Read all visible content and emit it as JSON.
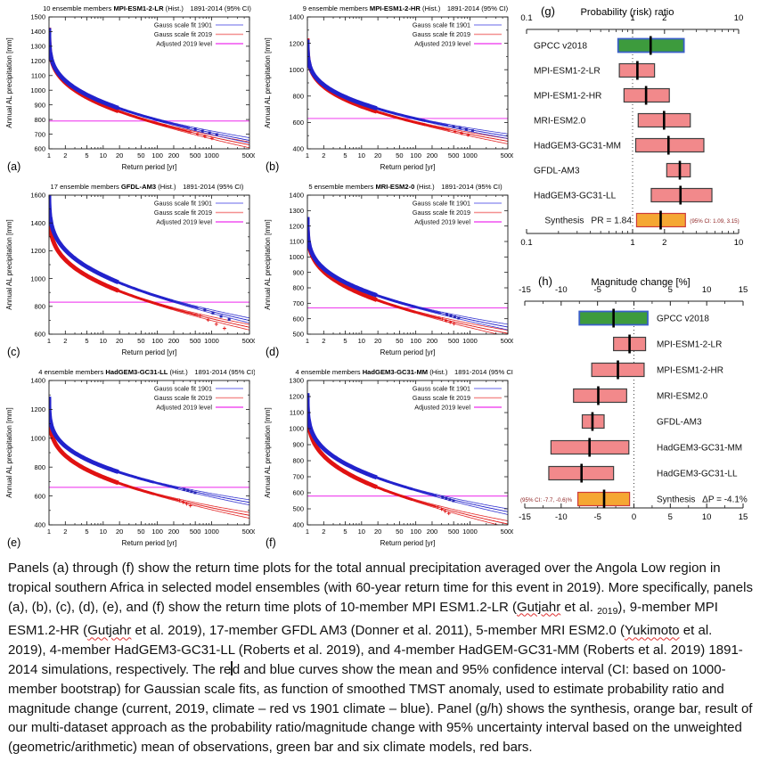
{
  "style": {
    "curve_blue": "#2222cc",
    "curve_red": "#e01212",
    "ci_blue": "#9a9af0",
    "ci_red": "#f49090",
    "level_magenta": "#f050f0",
    "marker_blue": "#2626b4",
    "bar_pink": "#f2898b",
    "bar_green": "#3d9b3d",
    "bar_orange": "#f5a733",
    "pink_border": "#3f3f3f",
    "green_border": "#3a5fc8",
    "orange_border": "#cc3a3a",
    "note_color": "#8b1e1e",
    "axis_color": "#1a1a1a"
  },
  "figure": {
    "shared": {
      "ylabel": "Annual AL precipitation [mm]",
      "xlabel": "Return period [yr]",
      "xticks": [
        1,
        2,
        5,
        10,
        20,
        50,
        100,
        200,
        500,
        1000,
        5000
      ],
      "legend": [
        {
          "label": "Gauss scale fit 1901",
          "color_key": "ci_blue"
        },
        {
          "label": "Gauss scale fit 2019",
          "color_key": "ci_red"
        },
        {
          "label": "Adjusted 2019 level",
          "color_key": "level_magenta"
        }
      ]
    }
  },
  "chart_data": [
    {
      "id": "a",
      "type": "line",
      "panel_letter": "(a)",
      "title_prefix": "10 ensemble members",
      "title_model": "MPI-ESM1-2-LR",
      "title_hist": "(Hist.)",
      "title_range": "1891-2014 (95% CI)",
      "xlabel": "Return period [yr]",
      "ylabel": "Annual AL precipitation [mm]",
      "xlim": [
        1,
        5000
      ],
      "ylim": [
        600,
        1500
      ],
      "ytick_step": 100,
      "adjusted_2019_level": 790,
      "gauss_fit_1901": {
        "value_at_T2": 1065,
        "sigma": 115
      },
      "gauss_fit_2019": {
        "value_at_T2": 1052,
        "sigma": 120
      },
      "data_max_T": 1240,
      "band_T": 150,
      "band2_T": 400,
      "drop_blue": 1.5,
      "drop_red": 3
    },
    {
      "id": "b",
      "type": "line",
      "panel_letter": "(b)",
      "title_prefix": "9 ensemble members",
      "title_model": "MPI-ESM1-2-HR",
      "title_hist": "(Hist.)",
      "title_range": "1891-2014 (95% CI)",
      "xlabel": "Return period [yr]",
      "ylabel": "Annual AL precipitation [mm]",
      "xlim": [
        1,
        5000
      ],
      "ylim": [
        400,
        1400
      ],
      "ytick_step": 200,
      "adjusted_2019_level": 630,
      "gauss_fit_1901": {
        "value_at_T2": 885,
        "sigma": 110
      },
      "gauss_fit_2019": {
        "value_at_T2": 872,
        "sigma": 117
      },
      "data_max_T": 1116,
      "band_T": 150,
      "band2_T": 400,
      "drop_blue": 1.5,
      "drop_red": 3
    },
    {
      "id": "c",
      "type": "line",
      "panel_letter": "(c)",
      "title_prefix": "17 ensemble members",
      "title_model": "GFDL-AM3",
      "title_hist": "(Hist.)",
      "title_range": "1891-2014 (95% CI)",
      "xlabel": "Return period [yr]",
      "ylabel": "Annual AL precipitation [mm]",
      "xlim": [
        1,
        5000
      ],
      "ylim": [
        600,
        1600
      ],
      "ytick_step": 200,
      "adjusted_2019_level": 830,
      "gauss_fit_1901": {
        "value_at_T2": 1205,
        "sigma": 143
      },
      "gauss_fit_2019": {
        "value_at_T2": 1135,
        "sigma": 137
      },
      "data_max_T": 2108,
      "band_T": 200,
      "band2_T": 600,
      "drop_blue": 9,
      "drop_red": 16
    },
    {
      "id": "d",
      "type": "line",
      "panel_letter": "(d)",
      "title_prefix": "5 ensemble members",
      "title_model": "MRI-ESM2-0",
      "title_hist": "(Hist.)",
      "title_range": "1891-2014 (95% CI)",
      "xlabel": "Return period [yr]",
      "ylabel": "Annual AL precipitation [mm]",
      "xlim": [
        1,
        5000
      ],
      "ylim": [
        500,
        1400
      ],
      "ytick_step": 100,
      "adjusted_2019_level": 670,
      "gauss_fit_1901": {
        "value_at_T2": 925,
        "sigma": 107
      },
      "gauss_fit_2019": {
        "value_at_T2": 905,
        "sigma": 113
      },
      "data_max_T": 620,
      "band_T": 100,
      "band2_T": 300,
      "drop_blue": 2,
      "drop_red": 4
    },
    {
      "id": "e",
      "type": "line",
      "panel_letter": "(e)",
      "title_prefix": "4 ensemble members",
      "title_model": "HadGEM3-GC31-LL",
      "title_hist": "(Hist.)",
      "title_range": "1891-2014 (95% CI)",
      "xlabel": "Return period [yr]",
      "ylabel": "Annual AL precipitation [mm]",
      "xlim": [
        1,
        5000
      ],
      "ylim": [
        400,
        1400
      ],
      "ytick_step": 200,
      "adjusted_2019_level": 660,
      "gauss_fit_1901": {
        "value_at_T2": 945,
        "sigma": 110
      },
      "gauss_fit_2019": {
        "value_at_T2": 880,
        "sigma": 117
      },
      "data_max_T": 496,
      "band_T": 90,
      "band2_T": 250,
      "drop_blue": 2,
      "drop_red": 6
    },
    {
      "id": "f",
      "type": "line",
      "panel_letter": "(f)",
      "title_prefix": "4 ensemble members",
      "title_model": "HadGEM3-GC31-MM",
      "title_hist": "(Hist.)",
      "title_range": "1891-2014 (95% CI)",
      "xlabel": "Return period [yr]",
      "ylabel": "Annual AL precipitation [mm]",
      "xlim": [
        1,
        5000
      ],
      "ylim": [
        400,
        1300
      ],
      "ytick_step": 100,
      "adjusted_2019_level": 580,
      "gauss_fit_1901": {
        "value_at_T2": 875,
        "sigma": 111
      },
      "gauss_fit_2019": {
        "value_at_T2": 830,
        "sigma": 120
      },
      "data_max_T": 496,
      "band_T": 90,
      "band2_T": 250,
      "drop_blue": 2,
      "drop_red": 7
    },
    {
      "id": "g",
      "type": "forest",
      "panel_letter": "(g)",
      "title": "Probability (risk) ratio",
      "scale": "log",
      "xlim": [
        0.1,
        10
      ],
      "tick_values": [
        0.1,
        1,
        2,
        10
      ],
      "tick_labels": [
        "0.1",
        "1",
        "2",
        "10"
      ],
      "reference_line": 1,
      "label_side": "left",
      "rows": [
        {
          "label": "GPCC v2018",
          "kind": "obs",
          "lo": 0.73,
          "hi": 3.05,
          "best": 1.48
        },
        {
          "label": "MPI-ESM1-2-LR",
          "kind": "model",
          "lo": 0.75,
          "hi": 1.61,
          "best": 1.11
        },
        {
          "label": "MPI-ESM1-2-HR",
          "kind": "model",
          "lo": 0.83,
          "hi": 2.22,
          "best": 1.34
        },
        {
          "label": "MRI-ESM2.0",
          "kind": "model",
          "lo": 1.13,
          "hi": 3.5,
          "best": 1.98
        },
        {
          "label": "HadGEM3-GC31-MM",
          "kind": "model",
          "lo": 1.07,
          "hi": 4.7,
          "best": 2.18
        },
        {
          "label": "GFDL-AM3",
          "kind": "model",
          "lo": 2.1,
          "hi": 3.5,
          "best": 2.79
        },
        {
          "label": "HadGEM3-GC31-LL",
          "kind": "model",
          "lo": 1.5,
          "hi": 5.6,
          "best": 2.83
        },
        {
          "label": "Synthesis",
          "extra": "PR = 1.84",
          "kind": "synthesis",
          "lo": 1.09,
          "hi": 3.15,
          "best": 1.84,
          "note": "(95% CI: 1.09, 3.15)",
          "note_side": "right"
        }
      ]
    },
    {
      "id": "h",
      "type": "forest",
      "panel_letter": "(h)",
      "title": "Magnitude change [%]",
      "scale": "linear",
      "xlim": [
        -15,
        15
      ],
      "tick_values": [
        -15,
        -10,
        -5,
        0,
        5,
        10,
        15
      ],
      "tick_labels": [
        "-15",
        "-10",
        "-5",
        "0",
        "5",
        "10",
        "15"
      ],
      "reference_line": 0,
      "label_side": "right",
      "rows": [
        {
          "label": "GPCC v2018",
          "kind": "obs",
          "lo": -7.5,
          "hi": 1.9,
          "best": -2.8
        },
        {
          "label": "MPI-ESM1-2-LR",
          "kind": "model",
          "lo": -2.8,
          "hi": 1.6,
          "best": -0.6
        },
        {
          "label": "MPI-ESM1-2-HR",
          "kind": "model",
          "lo": -5.8,
          "hi": 1.4,
          "best": -2.2
        },
        {
          "label": "MRI-ESM2.0",
          "kind": "model",
          "lo": -8.3,
          "hi": -1.0,
          "best": -4.9
        },
        {
          "label": "GFDL-AM3",
          "kind": "model",
          "lo": -7.1,
          "hi": -4.1,
          "best": -5.7
        },
        {
          "label": "HadGEM3-GC31-MM",
          "kind": "model",
          "lo": -11.4,
          "hi": -0.7,
          "best": -6.1
        },
        {
          "label": "HadGEM3-GC31-LL",
          "kind": "model",
          "lo": -11.7,
          "hi": -2.8,
          "best": -7.2
        },
        {
          "label": "Synthesis",
          "extra": "ΔP = -4.1%",
          "kind": "synthesis",
          "lo": -7.7,
          "hi": -0.6,
          "best": -4.1,
          "note": "(95% CI: -7.7, -0.6)%",
          "note_side": "left"
        }
      ]
    }
  ],
  "caption": {
    "parts": [
      {
        "text": "Panels (a) through (f) show the return time plots for the total annual precipitation averaged over the Angola Low region in tropical southern Africa in selected model ensembles (with 60-year return time for this event in 2019). More specifically, panels (a), (b), (c), (d), (e), and (f) show the return time plots of 10-member MPI ESM1.2-LR ("
      },
      {
        "text": "Gutjahr",
        "wavy": true
      },
      {
        "text": " et al. "
      },
      {
        "text": "2019",
        "small": true
      },
      {
        "text": "), 9-member MPI ESM1.2-HR ("
      },
      {
        "text": "Gutjahr",
        "wavy": true
      },
      {
        "text": " et al. 2019), 17-member GFDL AM3 (Donner et al. 2011), 5-member MRI ESM2.0 ("
      },
      {
        "text": "Yukimoto",
        "wavy": true
      },
      {
        "text": " et al. 2019), 4-member HadGEM3-GC31-LL (Roberts et al. 2019), and 4-member HadGEM-GC31-MM (Roberts et al. 2019) 1891-2014 simulations, respectively. The re"
      },
      {
        "caret": true
      },
      {
        "text": "d and blue curves show the mean and 95% confidence interval (CI: based on 1000-member bootstrap) for Gaussian scale fits, as function of smoothed TMST anomaly, used to estimate probability ratio and magnitude change (current, 2019, climate – red vs 1901 climate – blue). Panel (g/h) shows the synthesis, orange bar, result of our multi-dataset approach as the probability ratio/magnitude change with 95% uncertainty interval based on the unweighted (geometric/arithmetic) mean of observations, green bar and six climate models, red bars."
      }
    ]
  }
}
